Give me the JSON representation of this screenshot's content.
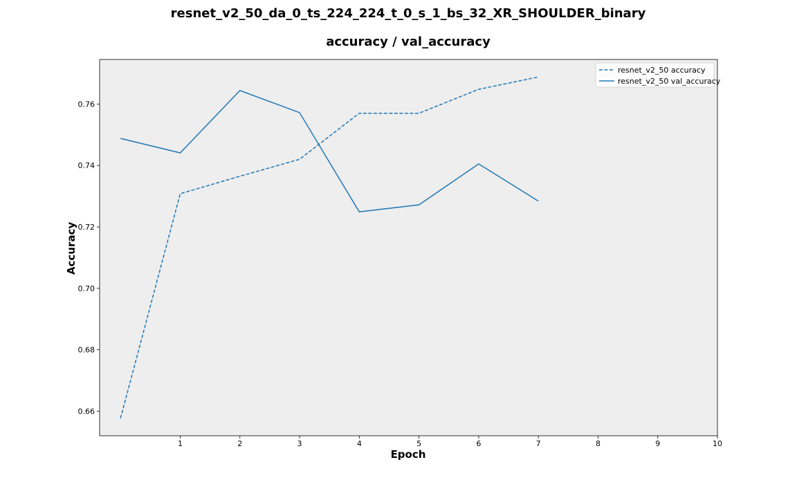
{
  "chart_data": {
    "type": "line",
    "suptitle": "resnet_v2_50_da_0_ts_224_224_t_0_s_1_bs_32_XR_SHOULDER_binary",
    "title": "accuracy / val_accuracy",
    "xlabel": "Epoch",
    "ylabel": "Accuracy",
    "xlim": [
      -0.35,
      10
    ],
    "ylim": [
      0.652,
      0.7745
    ],
    "xticks": [
      1,
      2,
      3,
      4,
      5,
      6,
      7,
      8,
      9,
      10
    ],
    "yticks": [
      0.66,
      0.68,
      0.7,
      0.72,
      0.74,
      0.76
    ],
    "ytick_labels": [
      "0.66",
      "0.68",
      "0.70",
      "0.72",
      "0.74",
      "0.76"
    ],
    "grid": false,
    "background": "#eeeeee",
    "legend_position": "top-right",
    "series": [
      {
        "name": "resnet_v2_50 accuracy",
        "style": "dashed",
        "color": "#1f77b4",
        "x": [
          0,
          1,
          2,
          3,
          4,
          5,
          6,
          7
        ],
        "y": [
          0.6577,
          0.7308,
          0.7365,
          0.742,
          0.757,
          0.757,
          0.7648,
          0.7688
        ]
      },
      {
        "name": "resnet_v2_50 val_accuracy",
        "style": "solid",
        "color": "#1f77b4",
        "x": [
          0,
          1,
          2,
          3,
          4,
          5,
          6,
          7
        ],
        "y": [
          0.7488,
          0.7441,
          0.7644,
          0.7572,
          0.7249,
          0.7272,
          0.7405,
          0.7284
        ]
      }
    ]
  }
}
